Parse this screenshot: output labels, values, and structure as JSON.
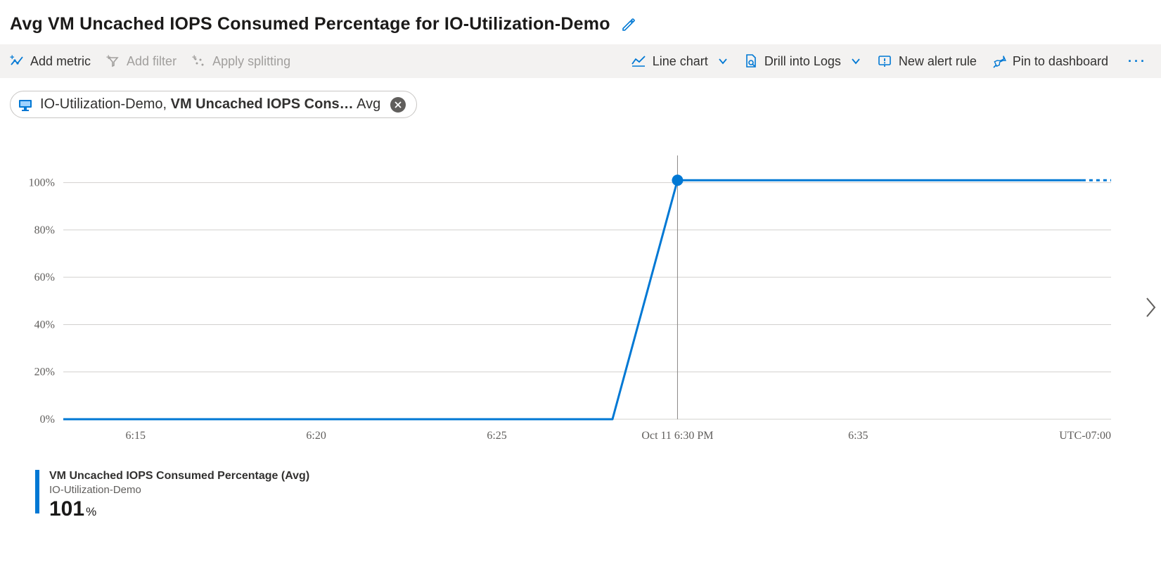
{
  "title": "Avg VM Uncached IOPS Consumed Percentage for IO-Utilization-Demo",
  "toolbar": {
    "add_metric": "Add metric",
    "add_filter": "Add filter",
    "apply_splitting": "Apply splitting",
    "line_chart": "Line chart",
    "drill_logs": "Drill into Logs",
    "new_alert": "New alert rule",
    "pin_dashboard": "Pin to dashboard"
  },
  "pill": {
    "resource": "IO-Utilization-Demo, ",
    "metric": "VM Uncached IOPS Cons…",
    "agg": " Avg"
  },
  "chart": {
    "type": "line",
    "line_color": "#0078d4",
    "line_width": 3,
    "marker_radius": 8,
    "grid_color": "#d2d0ce",
    "axis_label_color": "#605e5c",
    "background_color": "#ffffff",
    "cursor_line_color": "#8a8886",
    "y_ticks": [
      "0%",
      "20%",
      "40%",
      "60%",
      "80%",
      "100%"
    ],
    "ylim": [
      0,
      110
    ],
    "x_ticks": [
      "6:15",
      "6:20",
      "6:25",
      "Oct 11 6:30 PM",
      "6:35"
    ],
    "x_right_label": "UTC-07:00",
    "x_range_minutes": [
      13,
      42
    ],
    "x_tick_positions_min": [
      15,
      20,
      25,
      30,
      35
    ],
    "data_points": [
      {
        "x_min": 13.0,
        "y": 0
      },
      {
        "x_min": 28.2,
        "y": 0
      },
      {
        "x_min": 30.0,
        "y": 101
      },
      {
        "x_min": 41.2,
        "y": 101
      }
    ],
    "dotted_tail": [
      {
        "x_min": 41.2,
        "y": 101
      },
      {
        "x_min": 42.0,
        "y": 101
      }
    ],
    "cursor_x_min": 30.0,
    "highlight_point": {
      "x_min": 30.0,
      "y": 101
    }
  },
  "legend": {
    "metric_label": "VM Uncached IOPS Consumed Percentage (Avg)",
    "resource_label": "IO-Utilization-Demo",
    "value": "101",
    "unit": "%"
  }
}
